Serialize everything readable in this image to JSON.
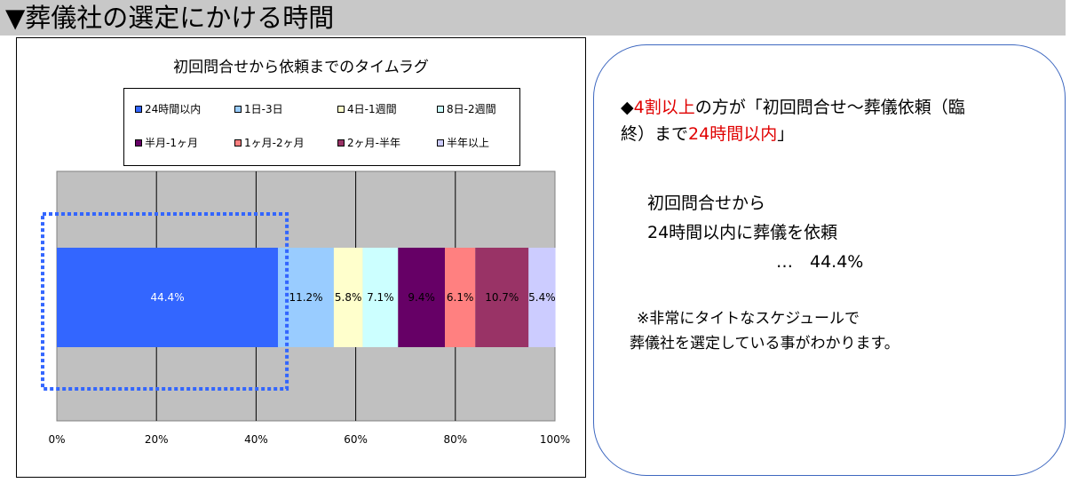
{
  "header": {
    "title": "▼葬儀社の選定にかける時間"
  },
  "chart_data": {
    "type": "bar",
    "orientation": "horizontal-stacked-100",
    "title": "初回問合せから依頼までのタイムラグ",
    "series": [
      {
        "name": "24時間以内",
        "value": 44.4,
        "label": "44.4%",
        "color": "#3366ff"
      },
      {
        "name": "1日-3日",
        "value": 11.2,
        "label": "11.2%",
        "color": "#99ccff"
      },
      {
        "name": "4日-1週間",
        "value": 5.8,
        "label": "5.8%",
        "color": "#ffffcc"
      },
      {
        "name": "8日-2週間",
        "value": 7.1,
        "label": "7.1%",
        "color": "#ccffff"
      },
      {
        "name": "半月-1ヶ月",
        "value": 9.4,
        "label": "9.4%",
        "color": "#660066"
      },
      {
        "name": "1ヶ月-2ヶ月",
        "value": 6.1,
        "label": "6.1%",
        "color": "#ff8080"
      },
      {
        "name": "2ヶ月-半年",
        "value": 10.7,
        "label": "10.7%",
        "color": "#993366"
      },
      {
        "name": "半年以上",
        "value": 5.4,
        "label": "5.4%",
        "color": "#ccccff"
      }
    ],
    "x_ticks": [
      "0%",
      "20%",
      "40%",
      "60%",
      "80%",
      "100%"
    ],
    "xlim": [
      0,
      100
    ],
    "grid": true,
    "legend_position": "top",
    "highlight_segment": "24時間以内"
  },
  "callout": {
    "line1": {
      "prefix": "◆",
      "red1": "4割以上",
      "mid": "の方が「初回問合せ～葬儀依頼（臨"
    },
    "line2": {
      "pre": "終）まで",
      "red2": "24時間以内",
      "post": "」"
    },
    "summary1": "初回問合せから",
    "summary2": "24時間以内に葬儀を依頼",
    "summary3": "…　44.4%",
    "note1": "※非常にタイトなスケジュールで",
    "note2": "葬儀社を選定している事がわかります。"
  }
}
